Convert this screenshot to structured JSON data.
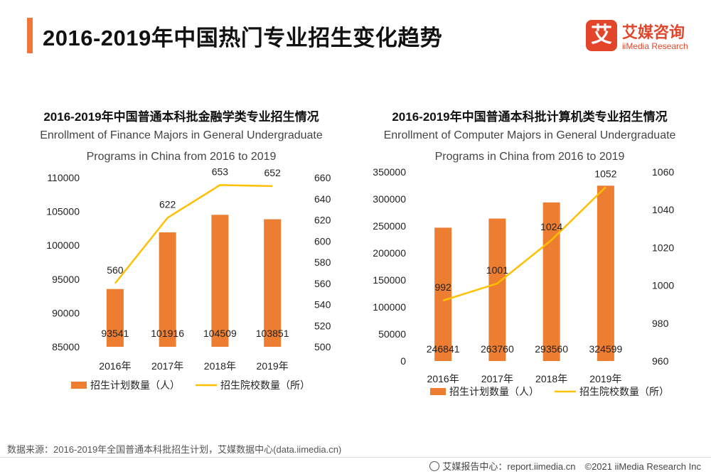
{
  "header": {
    "title": "2016-2019年中国热门专业招生变化趋势",
    "logo_mark": "艾",
    "logo_cn": "艾媒咨询",
    "logo_en": "iiMedia Research",
    "accent_color": "#f0763c"
  },
  "chart_data": [
    {
      "type": "bar",
      "title": "2016-2019年中国普通本科批金融学类专业招生情况",
      "subtitle_line1": "Enrollment of Finance Majors in General Undergraduate",
      "subtitle_line2": "Programs in China from 2016 to 2019",
      "categories": [
        "2016年",
        "2017年",
        "2018年",
        "2019年"
      ],
      "series": [
        {
          "name": "招生计划数量（人）",
          "type": "bar",
          "axis": "left",
          "color": "#ed7d31",
          "values": [
            93541,
            101916,
            104509,
            103851
          ]
        },
        {
          "name": "招生院校数量（所）",
          "type": "line",
          "axis": "right",
          "color": "#ffc000",
          "values": [
            560,
            622,
            653,
            652
          ]
        }
      ],
      "y_left": {
        "min": 85000,
        "max": 110000,
        "ticks": [
          "85000",
          "90000",
          "95000",
          "100000",
          "105000",
          "110000"
        ]
      },
      "y_right": {
        "min": 500,
        "max": 660,
        "ticks": [
          "500",
          "520",
          "540",
          "560",
          "580",
          "600",
          "620",
          "640",
          "660"
        ]
      },
      "grid": false,
      "legend": "bottom"
    },
    {
      "type": "bar",
      "title": "2016-2019年中国普通本科批计算机类专业招生情况",
      "subtitle_line1": "Enrollment of Computer Majors in General Undergraduate",
      "subtitle_line2": "Programs in China from 2016 to 2019",
      "categories": [
        "2016年",
        "2017年",
        "2018年",
        "2019年"
      ],
      "series": [
        {
          "name": "招生计划数量（人）",
          "type": "bar",
          "axis": "left",
          "color": "#ed7d31",
          "values": [
            246841,
            263760,
            293560,
            324599
          ]
        },
        {
          "name": "招生院校数量（所）",
          "type": "line",
          "axis": "right",
          "color": "#ffc000",
          "values": [
            992,
            1001,
            1024,
            1052
          ]
        }
      ],
      "y_left": {
        "min": 0,
        "max": 350000,
        "ticks": [
          "0",
          "50000",
          "100000",
          "150000",
          "200000",
          "250000",
          "300000",
          "350000"
        ]
      },
      "y_right": {
        "min": 960,
        "max": 1060,
        "ticks": [
          "960",
          "980",
          "1000",
          "1020",
          "1040",
          "1060"
        ]
      },
      "grid": false,
      "legend": "bottom"
    }
  ],
  "footer": {
    "source": "数据来源：2016-2019年全国普通本科批招生计划，艾媒数据中心(data.iimedia.cn)",
    "site": "艾媒报告中心：report.iimedia.cn　©2021 iiMedia Research Inc"
  }
}
